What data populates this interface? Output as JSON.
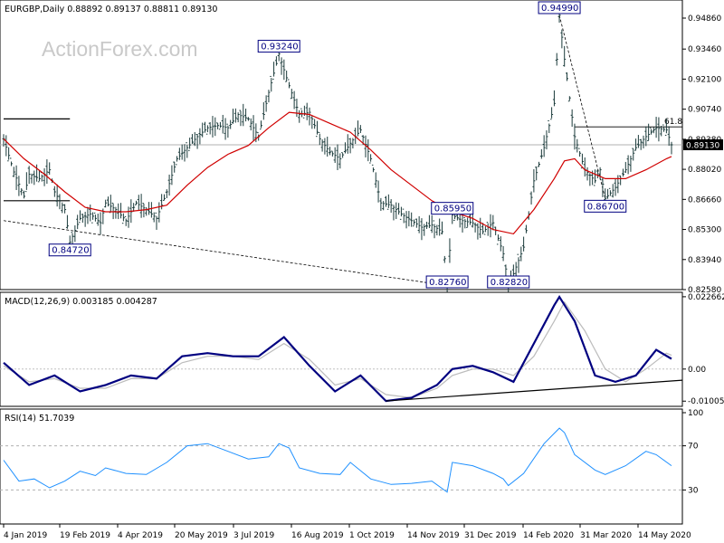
{
  "chart_data": [
    {
      "type": "ohlc",
      "header": "EURGBP,Daily  0.88892 0.89137 0.88811 0.89130",
      "watermark": "ActionForex.com",
      "ylim": [
        0.8258,
        0.9486
      ],
      "yticks": [
        "0.94860",
        "0.93460",
        "0.92100",
        "0.90740",
        "0.89380",
        "0.88020",
        "0.86660",
        "0.85300",
        "0.83940",
        "0.82580"
      ],
      "current_price": "0.89130",
      "fib_label": "61.8",
      "fib_level": 0.8994,
      "price_path": [
        [
          0,
          0.894
        ],
        [
          2,
          0.879
        ],
        [
          4,
          0.868
        ],
        [
          5,
          0.878
        ],
        [
          7,
          0.876
        ],
        [
          9,
          0.88
        ],
        [
          10,
          0.87
        ],
        [
          12,
          0.862
        ],
        [
          13,
          0.8472
        ],
        [
          15,
          0.858
        ],
        [
          17,
          0.86
        ],
        [
          19,
          0.856
        ],
        [
          20,
          0.865
        ],
        [
          22,
          0.862
        ],
        [
          24,
          0.857
        ],
        [
          26,
          0.865
        ],
        [
          28,
          0.862
        ],
        [
          30,
          0.858
        ],
        [
          32,
          0.87
        ],
        [
          34,
          0.885
        ],
        [
          36,
          0.89
        ],
        [
          38,
          0.895
        ],
        [
          40,
          0.899
        ],
        [
          42,
          0.9
        ],
        [
          44,
          0.899
        ],
        [
          46,
          0.905
        ],
        [
          48,
          0.903
        ],
        [
          50,
          0.895
        ],
        [
          52,
          0.915
        ],
        [
          54,
          0.9324
        ],
        [
          56,
          0.918
        ],
        [
          58,
          0.905
        ],
        [
          60,
          0.906
        ],
        [
          62,
          0.894
        ],
        [
          64,
          0.888
        ],
        [
          66,
          0.885
        ],
        [
          68,
          0.892
        ],
        [
          70,
          0.898
        ],
        [
          72,
          0.885
        ],
        [
          74,
          0.865
        ],
        [
          76,
          0.864
        ],
        [
          78,
          0.86
        ],
        [
          80,
          0.857
        ],
        [
          82,
          0.854
        ],
        [
          84,
          0.855
        ],
        [
          86,
          0.852
        ],
        [
          87,
          0.8276
        ],
        [
          88,
          0.8595
        ],
        [
          90,
          0.857
        ],
        [
          92,
          0.856
        ],
        [
          94,
          0.852
        ],
        [
          96,
          0.856
        ],
        [
          98,
          0.842
        ],
        [
          99,
          0.8282
        ],
        [
          100,
          0.833
        ],
        [
          102,
          0.845
        ],
        [
          104,
          0.875
        ],
        [
          106,
          0.89
        ],
        [
          108,
          0.91
        ],
        [
          109,
          0.9499
        ],
        [
          110,
          0.93
        ],
        [
          112,
          0.895
        ],
        [
          114,
          0.88
        ],
        [
          116,
          0.875
        ],
        [
          117,
          0.88
        ],
        [
          118,
          0.867
        ],
        [
          120,
          0.872
        ],
        [
          122,
          0.88
        ],
        [
          124,
          0.89
        ],
        [
          126,
          0.895
        ],
        [
          128,
          0.899
        ],
        [
          130,
          0.898
        ],
        [
          131,
          0.8913
        ]
      ],
      "ma_path": [
        [
          0,
          0.894
        ],
        [
          4,
          0.885
        ],
        [
          8,
          0.878
        ],
        [
          12,
          0.87
        ],
        [
          16,
          0.863
        ],
        [
          20,
          0.861
        ],
        [
          24,
          0.861
        ],
        [
          28,
          0.862
        ],
        [
          32,
          0.864
        ],
        [
          36,
          0.873
        ],
        [
          40,
          0.881
        ],
        [
          44,
          0.887
        ],
        [
          48,
          0.891
        ],
        [
          52,
          0.899
        ],
        [
          56,
          0.906
        ],
        [
          60,
          0.905
        ],
        [
          64,
          0.901
        ],
        [
          68,
          0.897
        ],
        [
          72,
          0.889
        ],
        [
          76,
          0.88
        ],
        [
          80,
          0.873
        ],
        [
          84,
          0.866
        ],
        [
          88,
          0.861
        ],
        [
          92,
          0.858
        ],
        [
          96,
          0.853
        ],
        [
          100,
          0.851
        ],
        [
          104,
          0.862
        ],
        [
          108,
          0.876
        ],
        [
          110,
          0.884
        ],
        [
          112,
          0.885
        ],
        [
          114,
          0.88
        ],
        [
          118,
          0.876
        ],
        [
          122,
          0.876
        ],
        [
          126,
          0.88
        ],
        [
          130,
          0.885
        ],
        [
          131,
          0.886
        ]
      ],
      "annotations": [
        {
          "text": "0.84720",
          "x": 13,
          "y": 0.8472
        },
        {
          "text": "0.93240",
          "x": 54,
          "y": 0.9324
        },
        {
          "text": "0.82760",
          "x": 87,
          "y": 0.8276
        },
        {
          "text": "0.85950",
          "x": 88,
          "y": 0.8595
        },
        {
          "text": "0.82820",
          "x": 99,
          "y": 0.8282
        },
        {
          "text": "0.94990",
          "x": 109,
          "y": 0.9499
        },
        {
          "text": "0.86700",
          "x": 118,
          "y": 0.867
        }
      ],
      "trendline": {
        "from": [
          0,
          0.857
        ],
        "to": [
          87,
          0.8276
        ]
      },
      "dashed_line": {
        "from": [
          109,
          0.9499
        ],
        "to": [
          118,
          0.867
        ]
      },
      "level_lines": [
        {
          "from": [
            0,
            0.903
          ],
          "to": [
            13,
            0.903
          ]
        },
        {
          "from": [
            0,
            0.866
          ],
          "to": [
            13,
            0.866
          ]
        }
      ]
    },
    {
      "type": "line",
      "header": "MACD(12,26,9) 0.003185 0.004287",
      "ylim": [
        -0.0114,
        0.0232
      ],
      "yticks": [
        "0.022662",
        "0.00",
        "-0.010052"
      ],
      "series": [
        {
          "color": "#000080",
          "values": [
            [
              0,
              0.002
            ],
            [
              5,
              -0.005
            ],
            [
              10,
              -0.002
            ],
            [
              15,
              -0.007
            ],
            [
              20,
              -0.005
            ],
            [
              25,
              -0.002
            ],
            [
              30,
              -0.003
            ],
            [
              35,
              0.004
            ],
            [
              40,
              0.005
            ],
            [
              45,
              0.004
            ],
            [
              50,
              0.004
            ],
            [
              55,
              0.01
            ],
            [
              60,
              0.001
            ],
            [
              65,
              -0.007
            ],
            [
              70,
              -0.002
            ],
            [
              75,
              -0.01
            ],
            [
              80,
              -0.009
            ],
            [
              85,
              -0.005
            ],
            [
              88,
              0.0
            ],
            [
              92,
              0.001
            ],
            [
              96,
              -0.001
            ],
            [
              100,
              -0.004
            ],
            [
              104,
              0.008
            ],
            [
              108,
              0.02
            ],
            [
              109,
              0.0226
            ],
            [
              112,
              0.015
            ],
            [
              116,
              -0.002
            ],
            [
              120,
              -0.004
            ],
            [
              124,
              -0.002
            ],
            [
              128,
              0.006
            ],
            [
              131,
              0.0032
            ]
          ]
        },
        {
          "color": "#bcbcbc",
          "values": [
            [
              0,
              0.001
            ],
            [
              5,
              -0.004
            ],
            [
              10,
              -0.003
            ],
            [
              15,
              -0.006
            ],
            [
              20,
              -0.006
            ],
            [
              25,
              -0.003
            ],
            [
              30,
              -0.003
            ],
            [
              35,
              0.002
            ],
            [
              40,
              0.004
            ],
            [
              45,
              0.004
            ],
            [
              50,
              0.003
            ],
            [
              55,
              0.008
            ],
            [
              60,
              0.003
            ],
            [
              65,
              -0.005
            ],
            [
              70,
              -0.003
            ],
            [
              75,
              -0.008
            ],
            [
              80,
              -0.009
            ],
            [
              85,
              -0.006
            ],
            [
              88,
              -0.002
            ],
            [
              92,
              0.0
            ],
            [
              96,
              0.0
            ],
            [
              100,
              -0.002
            ],
            [
              104,
              0.004
            ],
            [
              108,
              0.015
            ],
            [
              110,
              0.021
            ],
            [
              114,
              0.012
            ],
            [
              118,
              0.0
            ],
            [
              122,
              -0.004
            ],
            [
              126,
              0.0
            ],
            [
              130,
              0.005
            ],
            [
              131,
              0.0043
            ]
          ]
        }
      ],
      "trendline": {
        "from": [
          75,
          -0.01
        ],
        "to": [
          131,
          -0.0035
        ]
      }
    },
    {
      "type": "line",
      "header": "RSI(14) 51.7039",
      "ylim": [
        0,
        100
      ],
      "yticks": [
        "100",
        "70",
        "30"
      ],
      "levels": [
        70,
        30
      ],
      "series": [
        {
          "color": "#1e90ff",
          "values": [
            [
              0,
              57
            ],
            [
              3,
              38
            ],
            [
              6,
              40
            ],
            [
              9,
              32
            ],
            [
              12,
              38
            ],
            [
              15,
              47
            ],
            [
              18,
              43
            ],
            [
              20,
              50
            ],
            [
              24,
              45
            ],
            [
              28,
              44
            ],
            [
              32,
              55
            ],
            [
              36,
              70
            ],
            [
              40,
              72
            ],
            [
              44,
              65
            ],
            [
              48,
              58
            ],
            [
              52,
              60
            ],
            [
              54,
              72
            ],
            [
              56,
              68
            ],
            [
              58,
              50
            ],
            [
              62,
              45
            ],
            [
              66,
              44
            ],
            [
              68,
              55
            ],
            [
              72,
              40
            ],
            [
              76,
              35
            ],
            [
              80,
              36
            ],
            [
              84,
              38
            ],
            [
              87,
              28
            ],
            [
              88,
              55
            ],
            [
              92,
              52
            ],
            [
              96,
              45
            ],
            [
              98,
              40
            ],
            [
              99,
              34
            ],
            [
              102,
              45
            ],
            [
              106,
              72
            ],
            [
              109,
              86
            ],
            [
              110,
              82
            ],
            [
              112,
              62
            ],
            [
              116,
              48
            ],
            [
              118,
              44
            ],
            [
              122,
              52
            ],
            [
              126,
              65
            ],
            [
              128,
              62
            ],
            [
              131,
              52
            ]
          ]
        }
      ]
    }
  ],
  "x_labels": [
    "4 Jan 2019",
    "19 Feb 2019",
    "4 Apr 2019",
    "20 May 2019",
    "3 Jul 2019",
    "16 Aug 2019",
    "1 Oct 2019",
    "14 Nov 2019",
    "31 Dec 2019",
    "14 Feb 2020",
    "31 Mar 2020",
    "14 May 2020"
  ]
}
